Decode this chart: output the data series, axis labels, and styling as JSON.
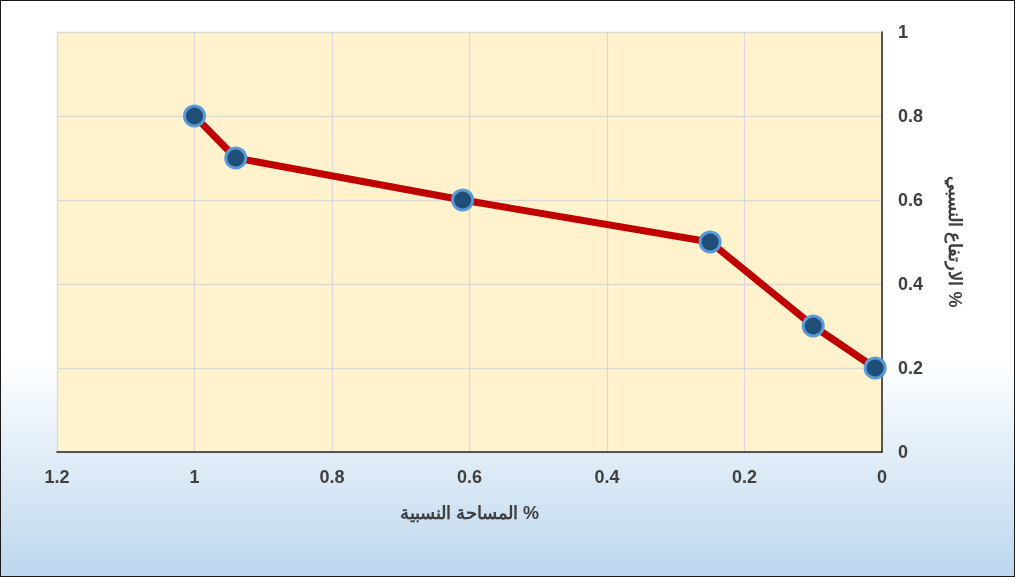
{
  "chart_data": {
    "type": "line",
    "xlabel": "المساحة النسبية %",
    "ylabel": "الارتفاع النسبي %",
    "x": [
      1,
      0.94,
      0.61,
      0.25,
      0.1,
      0.01
    ],
    "series": [
      {
        "color": "#c00000",
        "values": [
          0.8,
          0.7,
          0.6,
          0.5,
          0.3,
          0.2
        ]
      }
    ],
    "xlim": [
      1.2,
      0
    ],
    "xticks": [
      1.2,
      1,
      0.8,
      0.6,
      0.4,
      0.2,
      0
    ],
    "ylim": [
      0,
      1
    ],
    "yticks": [
      0,
      0.2,
      0.4,
      0.6,
      0.8,
      1
    ],
    "grid": true,
    "marker": "circle",
    "line_style": "solid"
  }
}
